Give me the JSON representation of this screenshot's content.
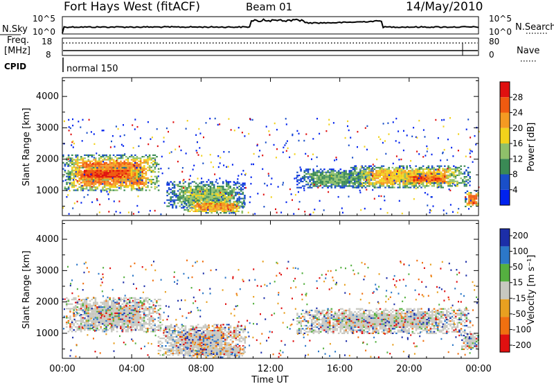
{
  "header": {
    "title": "Fort Hays West (fitACF)",
    "beam": "Beam 01",
    "date": "14/May/2010"
  },
  "top_panels": {
    "nsky_label": "N.Sky",
    "nsky_ticks": [
      "10^5",
      "10^0"
    ],
    "nsearch_label": "N.Search",
    "nsearch_ticks": [
      "10^5",
      "10^0"
    ],
    "freq_label": "Freq.",
    "freq_unit": "[MHz]",
    "freq_ticks": [
      "18",
      "8"
    ],
    "nave_label": "Nave",
    "nave_ticks": [
      "80",
      "0"
    ],
    "cpid_label": "CPID",
    "cpid_value": "normal 150"
  },
  "x_axis": {
    "label": "Time UT",
    "ticks": [
      "00:00",
      "04:00",
      "08:00",
      "12:00",
      "16:00",
      "20:00",
      "00:00"
    ]
  },
  "colors": {
    "power_scale": [
      "#0022ee",
      "#1a4fc9",
      "#3a8a55",
      "#8fc06a",
      "#f2d21b",
      "#f49a22",
      "#f05a10",
      "#e01010"
    ],
    "velocity_scale": [
      "#1c2ea8",
      "#2c78c8",
      "#55b040",
      "#c8c8c0",
      "#e8a020",
      "#f07010",
      "#e01010"
    ]
  },
  "chart_data": [
    {
      "type": "heatmap",
      "name": "power",
      "ylabel": "Slant Range [km]",
      "xlabel": "",
      "x_range_hours": [
        0,
        24
      ],
      "ylim": [
        200,
        4600
      ],
      "yticks": [
        "1000",
        "2000",
        "3000",
        "4000"
      ],
      "colorbar_label": "Power [dB]",
      "colorbar_ticks": [
        "4",
        "8",
        "12",
        "16",
        "20",
        "24",
        "28"
      ],
      "colorbar_range": [
        0,
        32
      ],
      "regions": [
        {
          "t0": 0.0,
          "t1": 5.6,
          "r0": 1000,
          "r1": 2150,
          "level": 24
        },
        {
          "t0": 0.3,
          "t1": 4.5,
          "r0": 1350,
          "r1": 1750,
          "level": 28
        },
        {
          "t0": 6.0,
          "t1": 10.5,
          "r0": 450,
          "r1": 1300,
          "level": 14
        },
        {
          "t0": 7.0,
          "t1": 10.5,
          "r0": 300,
          "r1": 700,
          "level": 22
        },
        {
          "t0": 13.5,
          "t1": 18.0,
          "r0": 1100,
          "r1": 1700,
          "level": 12
        },
        {
          "t0": 16.5,
          "t1": 23.5,
          "r0": 1100,
          "r1": 1800,
          "level": 20
        },
        {
          "t0": 19.5,
          "t1": 22.5,
          "r0": 1250,
          "r1": 1550,
          "level": 26
        },
        {
          "t0": 23.2,
          "t1": 24.0,
          "r0": 500,
          "r1": 1000,
          "level": 24
        }
      ]
    },
    {
      "type": "heatmap",
      "name": "velocity",
      "ylabel": "Slant Range [km]",
      "xlabel": "Time UT",
      "x_range_hours": [
        0,
        24
      ],
      "ylim": [
        200,
        4600
      ],
      "yticks": [
        "1000",
        "2000",
        "3000",
        "4000"
      ],
      "colorbar_label": "Velocity [m s⁻¹]",
      "colorbar_ticks": [
        "200",
        "100",
        "50",
        "15",
        "-15",
        "-50",
        "-100",
        "-200"
      ],
      "colorbar_range": [
        -250,
        250
      ],
      "regions": [
        {
          "t0": 0.2,
          "t1": 5.6,
          "r0": 1050,
          "r1": 2150,
          "level": 0
        },
        {
          "t0": 5.5,
          "t1": 10.5,
          "r0": 300,
          "r1": 1300,
          "level": -30
        },
        {
          "t0": 7.0,
          "t1": 10.5,
          "r0": 250,
          "r1": 600,
          "level": -60
        },
        {
          "t0": 13.5,
          "t1": 23.5,
          "r0": 1000,
          "r1": 1800,
          "level": 0
        },
        {
          "t0": 23.0,
          "t1": 24.0,
          "r0": 500,
          "r1": 1000,
          "level": 10
        }
      ]
    }
  ]
}
